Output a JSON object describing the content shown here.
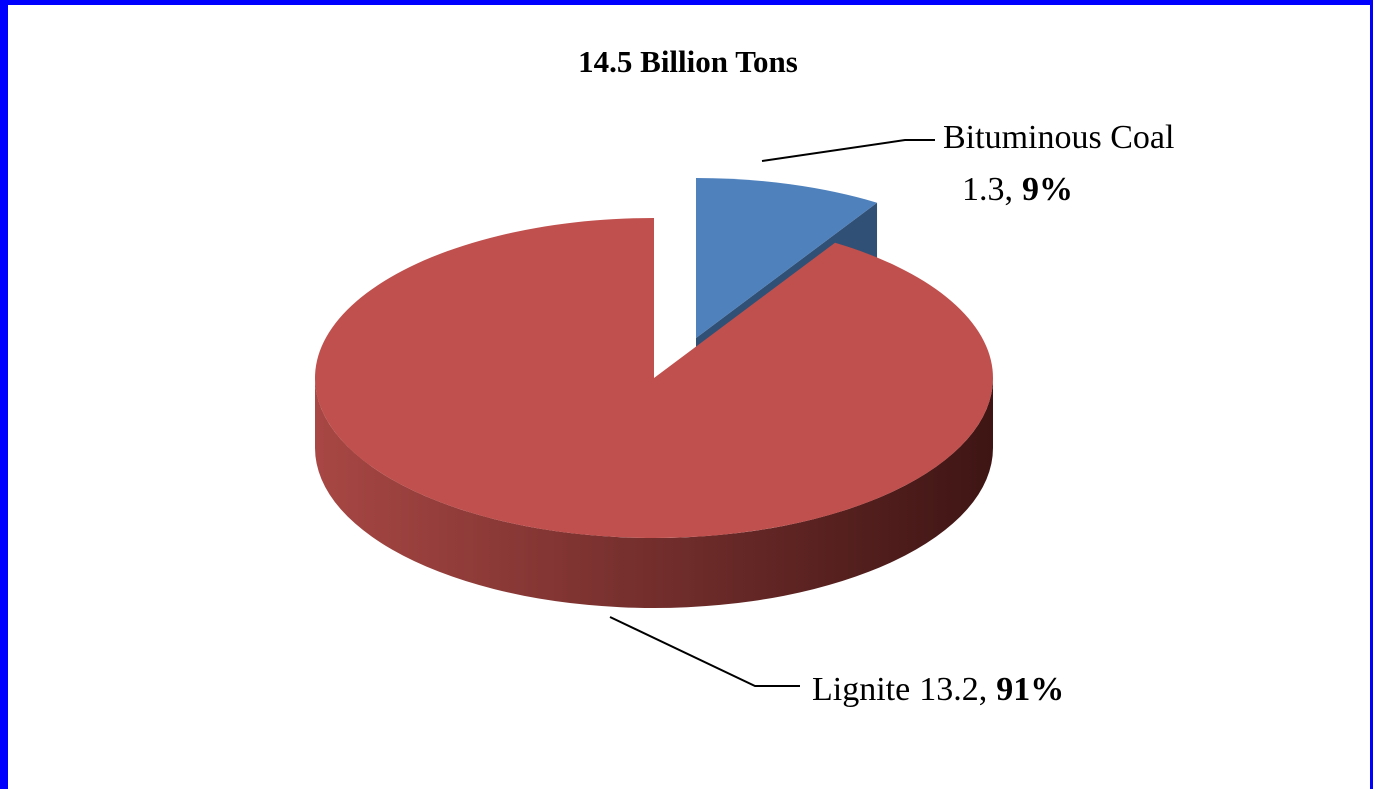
{
  "chart_data": {
    "type": "pie3d",
    "title": "14.5 Billion Tons",
    "categories": [
      "Bituminous Coal",
      "Lignite"
    ],
    "values": [
      1.3,
      13.2
    ],
    "value_labels": [
      "1.3,",
      "13.2,"
    ],
    "percent_labels": [
      "9%",
      "91%"
    ],
    "colors": [
      "#4f81bd",
      "#c0504d"
    ],
    "exploded": [
      true,
      false
    ]
  }
}
